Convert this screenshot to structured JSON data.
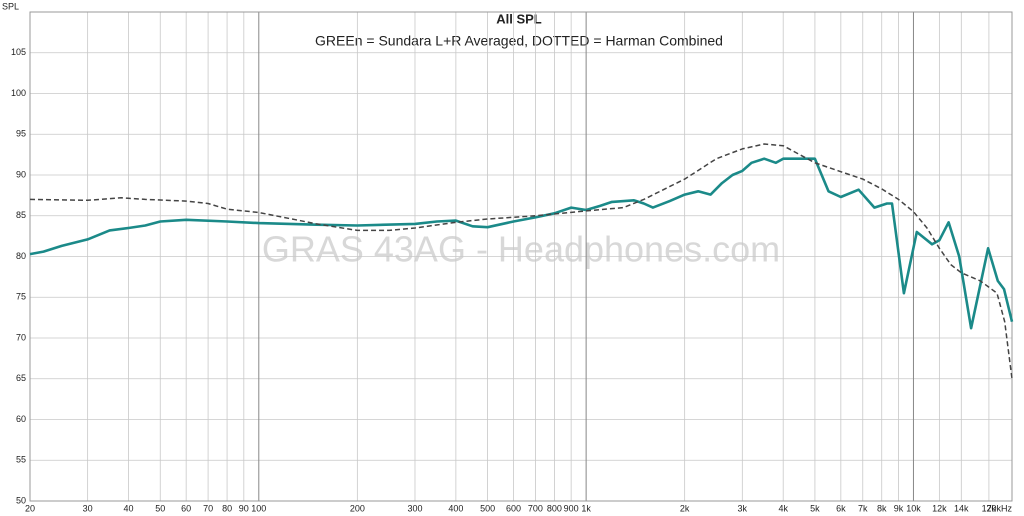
{
  "chart_data": {
    "type": "line",
    "title": "All SPL",
    "subtitle": "GREEn = Sundara L+R Averaged, DOTTED = Harman Combined",
    "watermark": "GRAS 43AG - Headphones.com",
    "ylabel": "SPL",
    "xscale": "log",
    "grid": true,
    "xlim": [
      20,
      20000
    ],
    "ylim": [
      50,
      110
    ],
    "yticks": [
      50,
      55,
      60,
      65,
      70,
      75,
      80,
      85,
      90,
      95,
      100,
      105
    ],
    "xticks": [
      20,
      30,
      40,
      50,
      60,
      70,
      80,
      90,
      100,
      200,
      300,
      400,
      500,
      600,
      700,
      800,
      900,
      {
        "value": 1000,
        "label": "1k"
      },
      {
        "value": 2000,
        "label": "2k"
      },
      {
        "value": 3000,
        "label": "3k"
      },
      {
        "value": 4000,
        "label": "4k"
      },
      {
        "value": 5000,
        "label": "5k"
      },
      {
        "value": 6000,
        "label": "6k"
      },
      {
        "value": 7000,
        "label": "7k"
      },
      {
        "value": 8000,
        "label": "8k"
      },
      {
        "value": 9000,
        "label": "9k"
      },
      {
        "value": 10000,
        "label": "10k"
      },
      {
        "value": 12000,
        "label": "12k"
      },
      {
        "value": 14000,
        "label": "14k"
      },
      {
        "value": 17000,
        "label": "17k"
      },
      {
        "value": 20000,
        "label": "20kHz"
      }
    ],
    "series": [
      {
        "color": "#1b8a89",
        "dash": "solid",
        "x": [
          20,
          22,
          25,
          30,
          35,
          40,
          45,
          50,
          60,
          80,
          100,
          150,
          200,
          300,
          350,
          400,
          450,
          500,
          600,
          700,
          800,
          900,
          1000,
          1100,
          1200,
          1400,
          1500,
          1600,
          1800,
          2000,
          2200,
          2400,
          2600,
          2800,
          3000,
          3200,
          3500,
          3800,
          4000,
          4500,
          5000,
          5500,
          6000,
          6800,
          7600,
          8300,
          8600,
          9350,
          10240,
          11400,
          12000,
          12800,
          13800,
          15000,
          16900,
          18100,
          18900,
          20000
        ],
        "values": [
          80.3,
          80.6,
          81.3,
          82.1,
          83.2,
          83.5,
          83.8,
          84.3,
          84.5,
          84.3,
          84.1,
          83.9,
          83.8,
          84.0,
          84.3,
          84.4,
          83.7,
          83.6,
          84.3,
          84.8,
          85.3,
          86.0,
          85.7,
          86.2,
          86.7,
          86.9,
          86.5,
          86.0,
          86.8,
          87.6,
          88.0,
          87.6,
          89.0,
          90.0,
          90.5,
          91.5,
          92.0,
          91.5,
          92.0,
          92.0,
          92.0,
          88.0,
          87.3,
          88.2,
          86.0,
          86.5,
          86.5,
          75.5,
          83.0,
          81.5,
          82.0,
          84.2,
          80.0,
          71.2,
          81.0,
          77.0,
          76.0,
          72.0
        ]
      },
      {
        "color": "#444444",
        "dash": "dashed",
        "x": [
          20,
          30,
          38,
          45,
          60,
          70,
          80,
          100,
          130,
          150,
          200,
          250,
          300,
          400,
          500,
          700,
          1000,
          1300,
          1500,
          2000,
          2500,
          3000,
          3500,
          4000,
          5000,
          6000,
          7000,
          8000,
          9000,
          10000,
          11000,
          12000,
          13000,
          14000,
          16000,
          18000,
          19000,
          20000
        ],
        "values": [
          87.0,
          86.9,
          87.2,
          87.0,
          86.8,
          86.5,
          85.8,
          85.4,
          84.5,
          84.0,
          83.2,
          83.2,
          83.5,
          84.2,
          84.6,
          85.0,
          85.6,
          86.0,
          87.0,
          89.5,
          92.0,
          93.2,
          93.8,
          93.6,
          91.5,
          90.4,
          89.5,
          88.3,
          87.0,
          85.5,
          83.5,
          81.0,
          79.0,
          78.0,
          77.0,
          75.5,
          72.0,
          65.0
        ]
      }
    ]
  }
}
